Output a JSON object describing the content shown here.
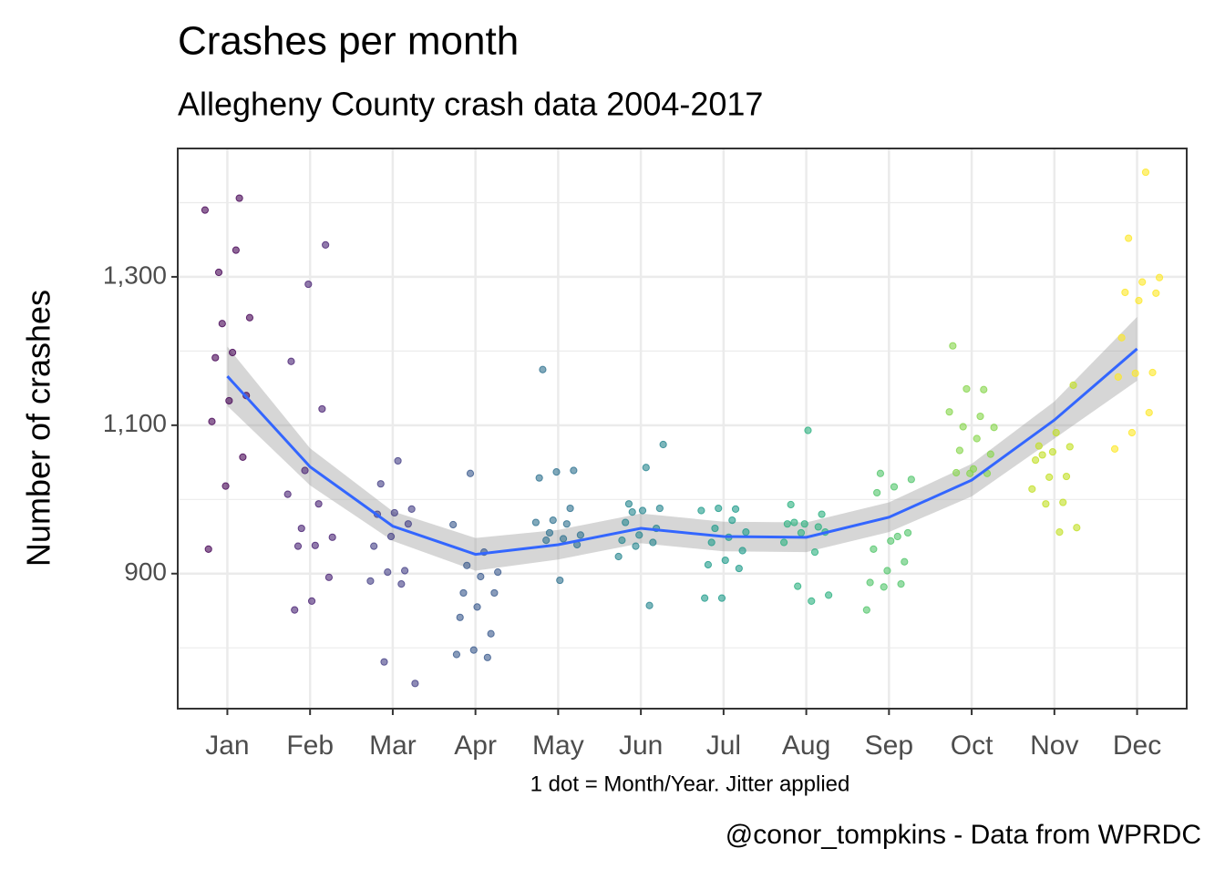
{
  "chart_data": {
    "type": "jitter",
    "title": "Crashes per month",
    "subtitle": "Allegheny County crash data 2004-2017",
    "y_label": "Number of crashes",
    "x_label": "1 dot = Month/Year. Jitter applied",
    "caption": "@conor_tompkins - Data from WPRDC",
    "categories": [
      "Jan",
      "Feb",
      "Mar",
      "Apr",
      "May",
      "Jun",
      "Jul",
      "Aug",
      "Sep",
      "Oct",
      "Nov",
      "Dec"
    ],
    "colors": [
      "#440154",
      "#482173",
      "#433E85",
      "#38598C",
      "#2D708E",
      "#25858E",
      "#1E9B8A",
      "#2BB07F",
      "#51C56A",
      "#85D54A",
      "#C2DF23",
      "#FDE725"
    ],
    "points": [
      [
        1390,
        1336,
        1306,
        1245,
        1198,
        1191,
        1140,
        1133,
        1105,
        1057,
        1018,
        933,
        1406,
        1237
      ],
      [
        1343,
        1290,
        1186,
        1122,
        1039,
        1007,
        994,
        961,
        949,
        938,
        937,
        895,
        863,
        851
      ],
      [
        1052,
        1021,
        987,
        982,
        980,
        967,
        950,
        937,
        904,
        902,
        890,
        886,
        781,
        752
      ],
      [
        1035,
        966,
        929,
        911,
        902,
        896,
        874,
        874,
        855,
        841,
        819,
        797,
        791,
        787
      ],
      [
        1175,
        1039,
        1037,
        1029,
        988,
        972,
        969,
        967,
        955,
        952,
        947,
        945,
        939,
        891
      ],
      [
        1074,
        1043,
        994,
        988,
        985,
        969,
        961,
        952,
        945,
        942,
        937,
        923,
        857,
        983
      ],
      [
        987,
        988,
        985,
        972,
        961,
        956,
        949,
        942,
        931,
        918,
        912,
        907,
        867,
        867
      ],
      [
        1093,
        993,
        980,
        967,
        967,
        963,
        955,
        942,
        929,
        883,
        871,
        863,
        969,
        956
      ],
      [
        1035,
        1027,
        1017,
        1009,
        955,
        944,
        933,
        916,
        904,
        888,
        886,
        882,
        851,
        950
      ],
      [
        1207,
        1148,
        1149,
        1118,
        1112,
        1098,
        1097,
        1082,
        1066,
        1061,
        1041,
        1036,
        1035,
        1035
      ],
      [
        1154,
        1090,
        1072,
        1071,
        1064,
        1053,
        1031,
        1030,
        1014,
        996,
        994,
        962,
        956,
        1060
      ],
      [
        1441,
        1352,
        1299,
        1293,
        1279,
        1278,
        1268,
        1218,
        1171,
        1170,
        1165,
        1117,
        1090,
        1068
      ]
    ],
    "smooth": {
      "color": "#3366FF",
      "band_color": "#999999",
      "values": [
        1166,
        1044,
        964,
        926,
        939,
        961,
        950,
        949,
        976,
        1026,
        1107,
        1203
      ],
      "lower": [
        1126,
        1019,
        944,
        904,
        919,
        941,
        930,
        929,
        956,
        1004,
        1082,
        1160
      ],
      "upper": [
        1206,
        1069,
        984,
        948,
        959,
        981,
        970,
        969,
        996,
        1048,
        1132,
        1246
      ]
    },
    "ylim": [
      718,
      1473
    ],
    "yticks": [
      900,
      {
        "value": 1100,
        "label": "1,100"
      },
      {
        "value": 1300,
        "label": "1,300"
      }
    ],
    "y_minor_ticks": [
      800,
      1000,
      1200,
      1400
    ],
    "grid": true
  }
}
